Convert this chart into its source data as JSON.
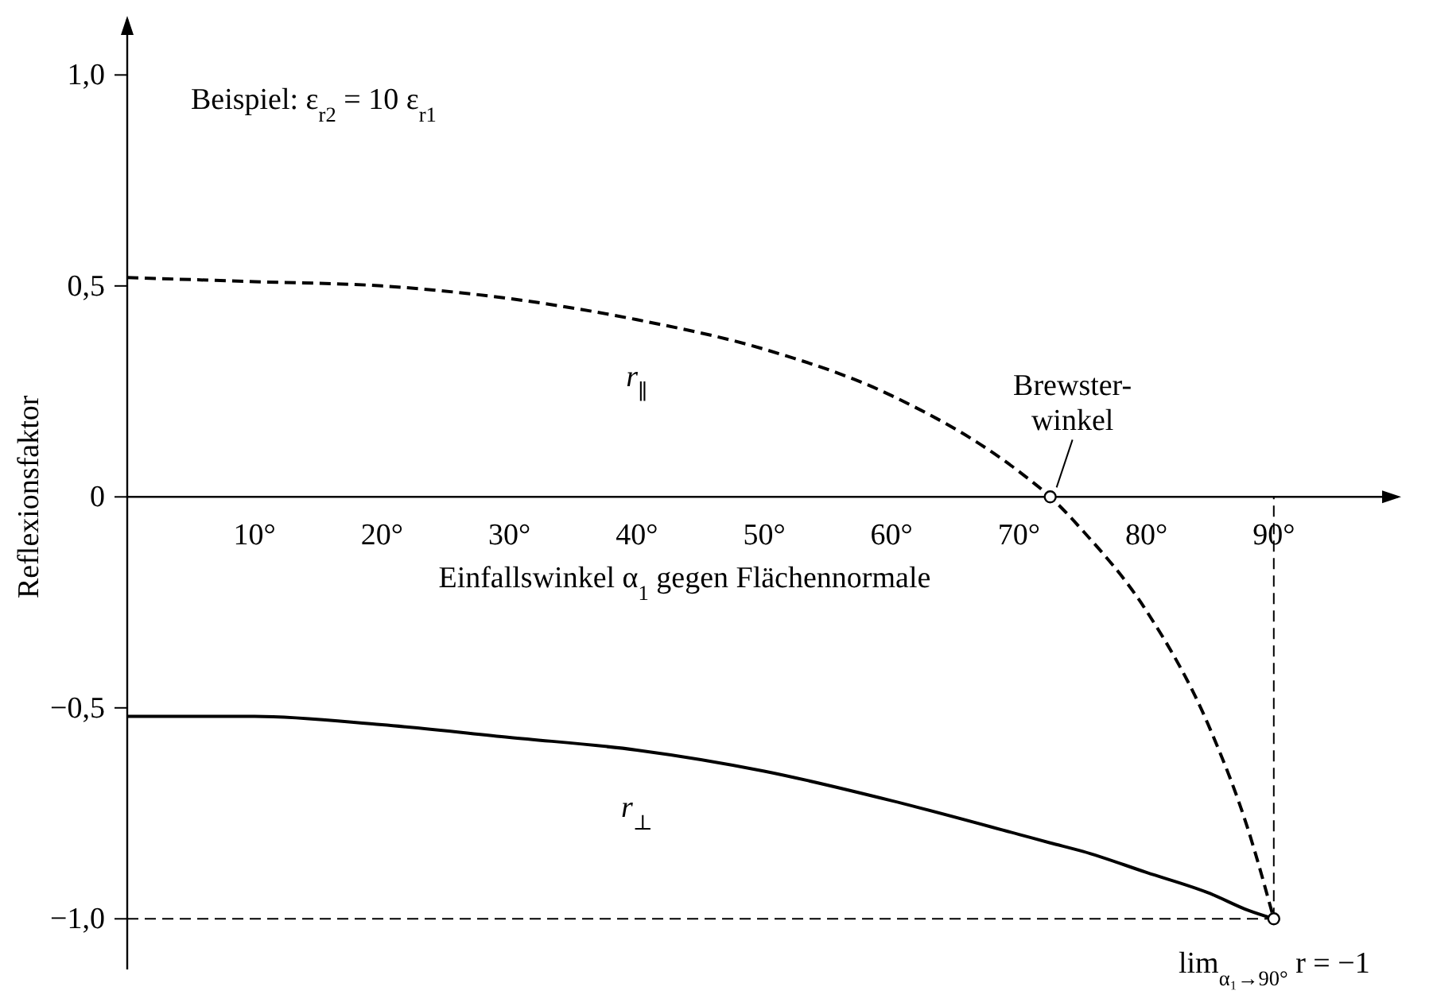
{
  "chart_data": {
    "type": "line",
    "ylabel": "Reflexionsfaktor",
    "xlabel": "Einfallswinkel α$_{1}$ gegen Flächennormale",
    "x": [
      0,
      10,
      20,
      30,
      40,
      50,
      60,
      70,
      72.45,
      75,
      80,
      85,
      88,
      90
    ],
    "series": [
      {
        "name": "r$_{∥}$",
        "color": "#000000",
        "line_style": "dashed",
        "values": [
          0.52,
          0.51,
          0.5,
          0.47,
          0.42,
          0.35,
          0.24,
          0.06,
          0,
          -0.08,
          -0.27,
          -0.55,
          -0.79,
          -1
        ]
      },
      {
        "name": "r$_{⊥}$",
        "color": "#000000",
        "line_style": "solid",
        "values": [
          -0.52,
          -0.52,
          -0.54,
          -0.57,
          -0.6,
          -0.65,
          -0.72,
          -0.8,
          -0.82,
          -0.84,
          -0.89,
          -0.94,
          -0.98,
          -1
        ]
      },
      {
        "type": "scatter",
        "marker": "circle",
        "color": "#000000",
        "x": [
          72.45,
          90
        ],
        "values": [
          0,
          -1
        ]
      }
    ],
    "xlim": [
      0,
      100
    ],
    "ylim": [
      -1.12,
      1.14
    ],
    "xticks": [
      {
        "value": 10,
        "label": "10°"
      },
      {
        "value": 20,
        "label": "20°"
      },
      {
        "value": 30,
        "label": "30°"
      },
      {
        "value": 40,
        "label": "40°"
      },
      {
        "value": 50,
        "label": "50°"
      },
      {
        "value": 60,
        "label": "60°"
      },
      {
        "value": 70,
        "label": "70°"
      },
      {
        "value": 80,
        "label": "80°"
      },
      {
        "value": 90,
        "label": "90°"
      }
    ],
    "yticks": [
      {
        "value": 1,
        "label": "1,0"
      },
      {
        "value": 0.5,
        "label": "0,5"
      },
      0,
      {
        "value": -0.5,
        "label": "−0,5"
      },
      {
        "value": -1,
        "label": "−1,0"
      }
    ],
    "ref_lines": [
      {
        "axis": "y",
        "value": -1,
        "line_style": "dashed"
      },
      {
        "axis": "x",
        "value": 90,
        "line_style": "dashed"
      }
    ],
    "annotations": [
      "Beispiel: ε$_{r2}$ = 10 ε$_{r1}$",
      {
        "text": "Brewster-\nwinkel",
        "x": 72.45,
        "y": 0
      },
      {
        "text": "lim$_{α₁→90°}$ r = −1",
        "x": 90,
        "y": -1
      }
    ],
    "grid": false,
    "marker": "none"
  }
}
